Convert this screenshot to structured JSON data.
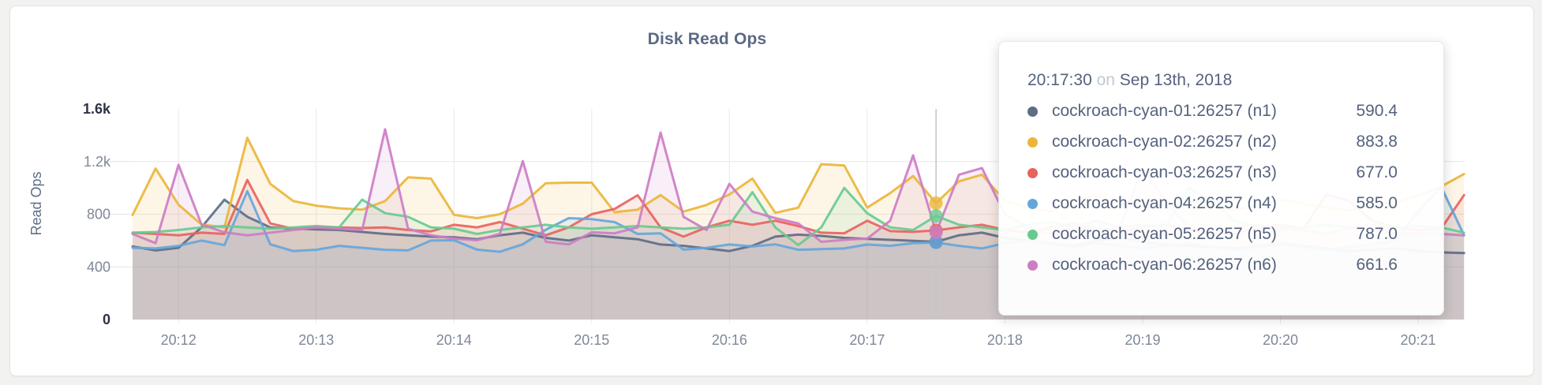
{
  "panel": {
    "title": "Disk Read Ops"
  },
  "tooltip": {
    "time": "20:17:30",
    "on_word": "on",
    "date": "Sep 13th, 2018",
    "rows": [
      {
        "label": "cockroach-cyan-01:26257 (n1)",
        "value": "590.4",
        "color": "#5f6c87"
      },
      {
        "label": "cockroach-cyan-02:26257 (n2)",
        "value": "883.8",
        "color": "#ecb539"
      },
      {
        "label": "cockroach-cyan-03:26257 (n3)",
        "value": "677.0",
        "color": "#e8635f"
      },
      {
        "label": "cockroach-cyan-04:26257 (n4)",
        "value": "585.0",
        "color": "#64a6dc"
      },
      {
        "label": "cockroach-cyan-05:26257 (n5)",
        "value": "787.0",
        "color": "#69ca90"
      },
      {
        "label": "cockroach-cyan-06:26257 (n6)",
        "value": "661.6",
        "color": "#cd7dc4"
      }
    ]
  },
  "chart_data": {
    "type": "area",
    "title": "Disk Read Ops",
    "ylabel": "Read Ops",
    "xlabel": "",
    "ylim": [
      0,
      1600
    ],
    "grid": true,
    "legend_position": "none",
    "x_start": "20:11:40",
    "x_interval_seconds": 10,
    "x_tick_labels": [
      "20:12",
      "20:13",
      "20:14",
      "20:15",
      "20:16",
      "20:17",
      "20:18",
      "20:19",
      "20:20",
      "20:21"
    ],
    "y_ticks": [
      {
        "label": "0",
        "value": 0,
        "emph": true
      },
      {
        "label": "400",
        "value": 400,
        "emph": false
      },
      {
        "label": "800",
        "value": 800,
        "emph": false
      },
      {
        "label": "1.2k",
        "value": 1200,
        "emph": false
      },
      {
        "label": "1.6k",
        "value": 1600,
        "emph": true
      }
    ],
    "hover": {
      "index": 35,
      "time": "20:17:30"
    },
    "series": [
      {
        "name": "cockroach-cyan-01:26257 (n1)",
        "color": "#5f6c87",
        "values": [
          555,
          525,
          545,
          700,
          910,
          780,
          700,
          690,
          685,
          680,
          665,
          650,
          640,
          630,
          625,
          610,
          640,
          660,
          620,
          600,
          640,
          625,
          610,
          570,
          560,
          540,
          520,
          560,
          630,
          645,
          635,
          620,
          613,
          605,
          598,
          590.4,
          640,
          660,
          620,
          600,
          580,
          560,
          600,
          620,
          590,
          570,
          560,
          550,
          540,
          560,
          580,
          560,
          540,
          520,
          530,
          540,
          520,
          510,
          505
        ]
      },
      {
        "name": "cockroach-cyan-02:26257 (n2)",
        "color": "#ecb539",
        "values": [
          794,
          1147,
          872,
          722,
          700,
          1380,
          1030,
          900,
          865,
          845,
          835,
          900,
          1080,
          1070,
          795,
          770,
          800,
          880,
          1035,
          1040,
          1040,
          815,
          835,
          945,
          820,
          870,
          950,
          1071,
          810,
          850,
          1180,
          1170,
          850,
          960,
          1090,
          883.8,
          1050,
          1100,
          900,
          850,
          820,
          900,
          950,
          880,
          860,
          840,
          900,
          860,
          830,
          870,
          910,
          880,
          850,
          830,
          860,
          890,
          940,
          1010,
          1105
        ]
      },
      {
        "name": "cockroach-cyan-03:26257 (n3)",
        "color": "#e8635f",
        "values": [
          660,
          650,
          640,
          660,
          650,
          1060,
          730,
          690,
          705,
          700,
          695,
          700,
          680,
          670,
          720,
          700,
          740,
          690,
          640,
          700,
          800,
          840,
          944,
          700,
          630,
          700,
          750,
          720,
          750,
          710,
          660,
          655,
          750,
          672,
          666,
          677,
          700,
          720,
          680,
          660,
          700,
          730,
          690,
          670,
          700,
          720,
          680,
          660,
          650,
          700,
          720,
          690,
          950,
          900,
          750,
          700,
          680,
          690,
          945
        ]
      },
      {
        "name": "cockroach-cyan-04:26257 (n4)",
        "color": "#64a6dc",
        "values": [
          545,
          540,
          560,
          600,
          565,
          975,
          571,
          520,
          530,
          560,
          545,
          530,
          525,
          600,
          602,
          531,
          515,
          571,
          682,
          770,
          762,
          740,
          650,
          655,
          531,
          545,
          570,
          555,
          571,
          530,
          535,
          540,
          570,
          560,
          580,
          585,
          560,
          540,
          580,
          600,
          570,
          550,
          580,
          560,
          540,
          560,
          580,
          550,
          530,
          550,
          570,
          550,
          530,
          550,
          570,
          600,
          820,
          1010,
          640
        ]
      },
      {
        "name": "cockroach-cyan-05:26257 (n5)",
        "color": "#69ca90",
        "values": [
          660,
          665,
          680,
          700,
          710,
          700,
          690,
          700,
          710,
          700,
          910,
          808,
          780,
          700,
          690,
          650,
          680,
          700,
          720,
          700,
          690,
          700,
          710,
          700,
          690,
          700,
          720,
          967,
          700,
          565,
          700,
          1000,
          808,
          700,
          680,
          787,
          720,
          700,
          680,
          720,
          740,
          700,
          680,
          700,
          720,
          700,
          1000,
          900,
          750,
          700,
          680,
          700,
          720,
          700,
          680,
          700,
          710,
          700,
          660
        ]
      },
      {
        "name": "cockroach-cyan-06:26257 (n6)",
        "color": "#cd7dc4",
        "values": [
          650,
          580,
          1175,
          722,
          662,
          640,
          660,
          680,
          700,
          690,
          680,
          1445,
          690,
          640,
          615,
          602,
          650,
          1203,
          590,
          571,
          662,
          655,
          700,
          1420,
          780,
          680,
          1030,
          820,
          770,
          730,
          590,
          605,
          615,
          750,
          1247,
          661.6,
          1100,
          1150,
          800,
          700,
          650,
          700,
          750,
          700,
          1150,
          900,
          700,
          650,
          700,
          720,
          700,
          680,
          650,
          700,
          680,
          660,
          650,
          650,
          640
        ]
      }
    ]
  },
  "style": {
    "grid_color": "#e8e8e8",
    "tick_stub_color": "#e2e2e2",
    "hover_line_color": "#c5c5c5",
    "axis_text_color": "#7e8899",
    "axis_text_emph_color": "#2b3344",
    "ylabel_color": "#5f6e88",
    "area_opacity": 0.12,
    "line_opacity": 0.92
  }
}
